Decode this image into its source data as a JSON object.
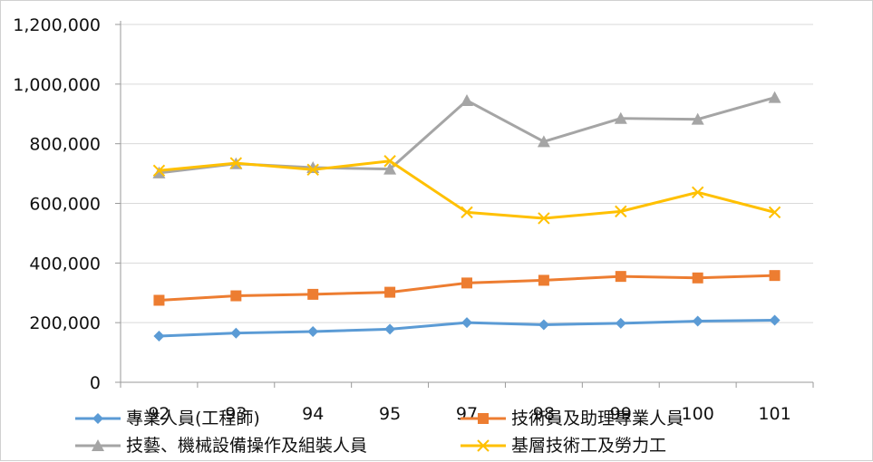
{
  "chart_data": {
    "type": "line",
    "categories": [
      "92",
      "93",
      "94",
      "95",
      "97",
      "98",
      "99",
      "100",
      "101"
    ],
    "ylim": [
      0,
      1200000
    ],
    "yticks": [
      0,
      200000,
      400000,
      600000,
      800000,
      1000000,
      1200000
    ],
    "ytick_labels": [
      "0",
      "200,000",
      "400,000",
      "600,000",
      "800,000",
      "1,000,000",
      "1,200,000"
    ],
    "grid": true,
    "legend_position": "bottom",
    "series": [
      {
        "name": "專業人員(工程師)",
        "color": "#5B9BD5",
        "marker": "diamond",
        "values": [
          155000,
          165000,
          170000,
          178000,
          200000,
          193000,
          198000,
          205000,
          208000
        ]
      },
      {
        "name": "技術員及助理專業人員",
        "color": "#ED7D31",
        "marker": "square",
        "values": [
          275000,
          290000,
          295000,
          302000,
          333000,
          342000,
          355000,
          350000,
          358000
        ]
      },
      {
        "name": "技藝、機械設備操作及組裝人員",
        "color": "#A5A5A5",
        "marker": "triangle",
        "values": [
          702000,
          733000,
          720000,
          715000,
          945000,
          807000,
          885000,
          882000,
          955000
        ]
      },
      {
        "name": "基層技術工及勞力工",
        "color": "#FFC000",
        "marker": "x",
        "values": [
          710000,
          735000,
          713000,
          742000,
          570000,
          550000,
          573000,
          637000,
          570000
        ]
      }
    ]
  }
}
